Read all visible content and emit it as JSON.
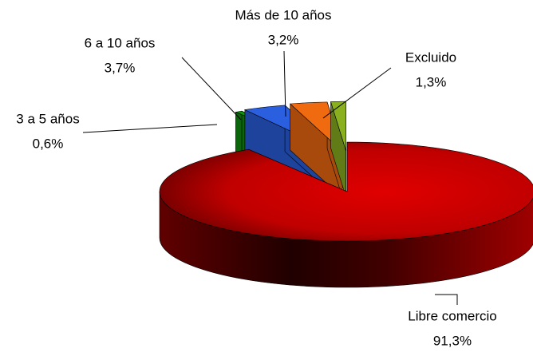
{
  "chart_data": {
    "type": "pie3d",
    "categories": [
      "Libre comercio",
      "3 a 5 años",
      "6 a 10 años",
      "Más de 10 años",
      "Excluido"
    ],
    "values": [
      91.3,
      0.6,
      3.7,
      3.2,
      1.3
    ],
    "value_labels": [
      "91,3%",
      "0,6%",
      "3,7%",
      "3,2%",
      "1,3%"
    ],
    "colors": [
      "#cc0000",
      "#109010",
      "#2a5fe0",
      "#f06a10",
      "#8ab020"
    ]
  }
}
